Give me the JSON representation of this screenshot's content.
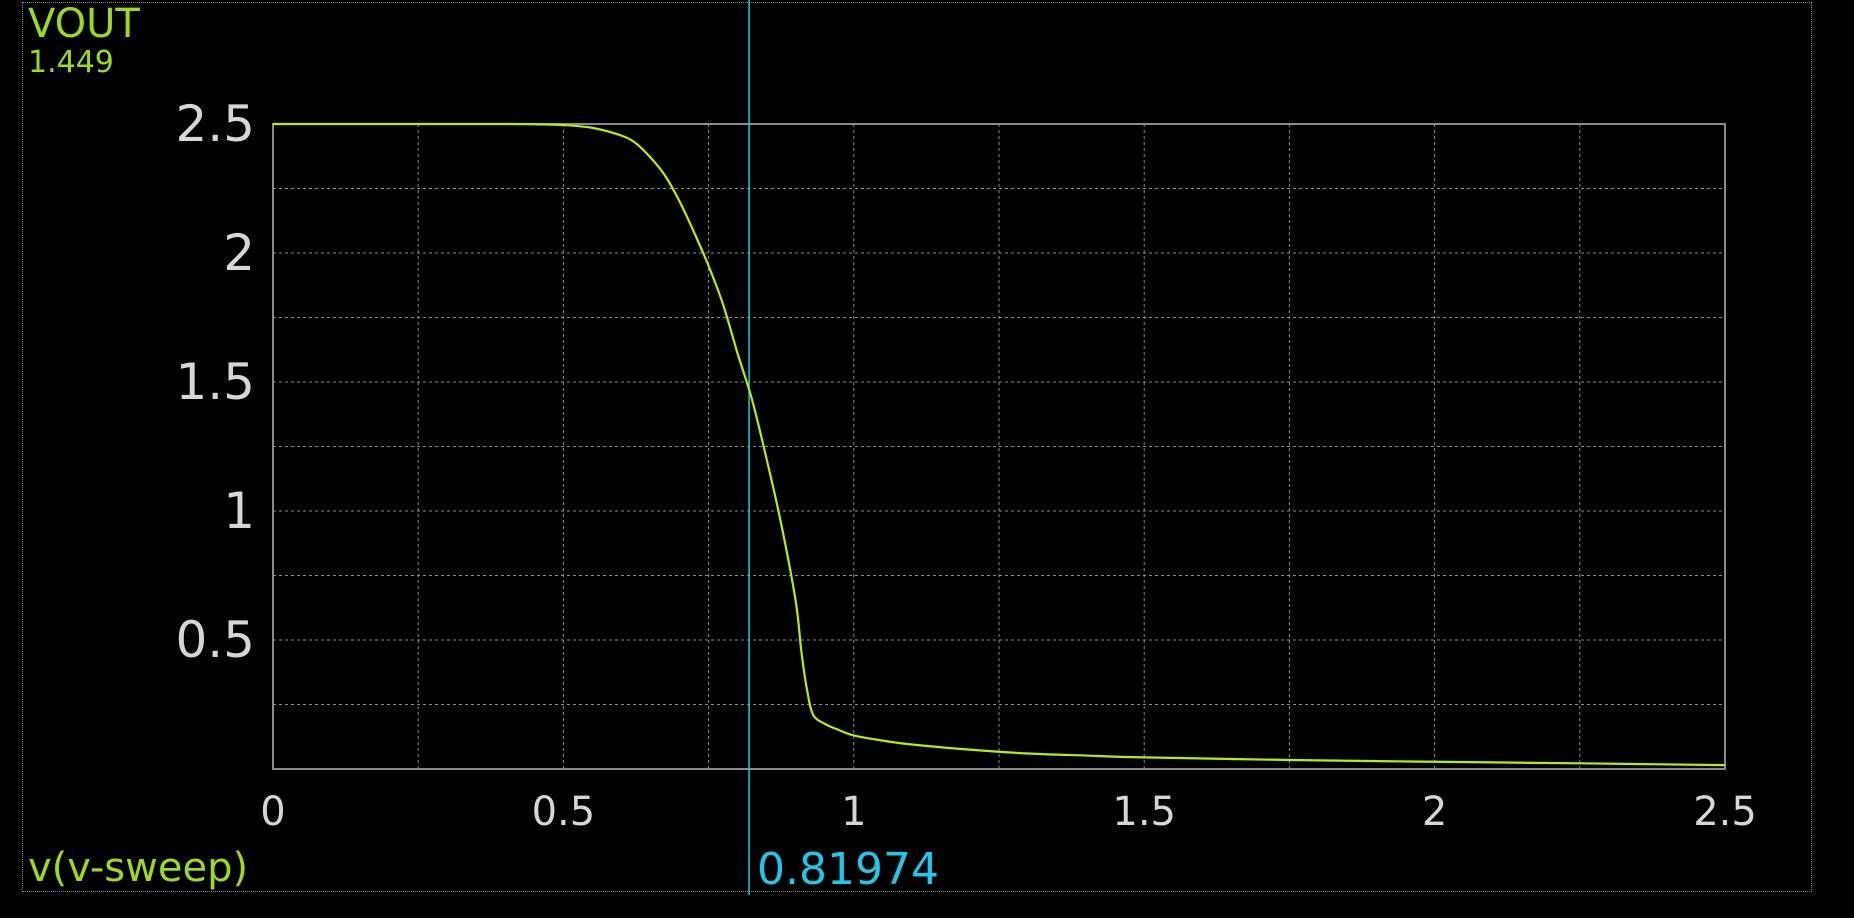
{
  "signal": {
    "name": "VOUT",
    "cursor_readout": "1.449"
  },
  "x_axis": {
    "label": "v(v-sweep)"
  },
  "cursor": {
    "x_value": 0.81974,
    "readout": "0.81974"
  },
  "colors": {
    "background": "#000000",
    "trace": "#b4f000",
    "label": "#9cdc12",
    "cursor": "#1ec8ea",
    "grid": "#8a8a8a",
    "tick_text": "#d6d6d6"
  },
  "chart_data": {
    "type": "line",
    "title": "",
    "xlabel": "v(v-sweep)",
    "ylabel": "VOUT",
    "xlim": [
      0,
      2.5
    ],
    "ylim": [
      0,
      2.5
    ],
    "x_ticks": [
      "0",
      "0.5",
      "1",
      "1.5",
      "2",
      "2.5"
    ],
    "y_ticks": [
      "0.5",
      "1",
      "1.5",
      "2",
      "2.5"
    ],
    "grid": true,
    "series": [
      {
        "name": "VOUT",
        "x": [
          0,
          0.1,
          0.2,
          0.3,
          0.4,
          0.45,
          0.5,
          0.55,
          0.6,
          0.625,
          0.65,
          0.675,
          0.7,
          0.725,
          0.75,
          0.775,
          0.8,
          0.825,
          0.85,
          0.875,
          0.9,
          0.91,
          0.92,
          0.93,
          0.95,
          0.97,
          1.0,
          1.05,
          1.1,
          1.2,
          1.3,
          1.4,
          1.5,
          1.75,
          2.0,
          2.25,
          2.5
        ],
        "y": [
          2.5,
          2.5,
          2.5,
          2.5,
          2.5,
          2.499,
          2.496,
          2.485,
          2.455,
          2.425,
          2.37,
          2.3,
          2.2,
          2.08,
          1.95,
          1.8,
          1.61,
          1.43,
          1.2,
          0.95,
          0.65,
          0.45,
          0.3,
          0.21,
          0.175,
          0.155,
          0.13,
          0.11,
          0.095,
          0.075,
          0.06,
          0.052,
          0.045,
          0.035,
          0.028,
          0.022,
          0.015
        ]
      }
    ]
  }
}
